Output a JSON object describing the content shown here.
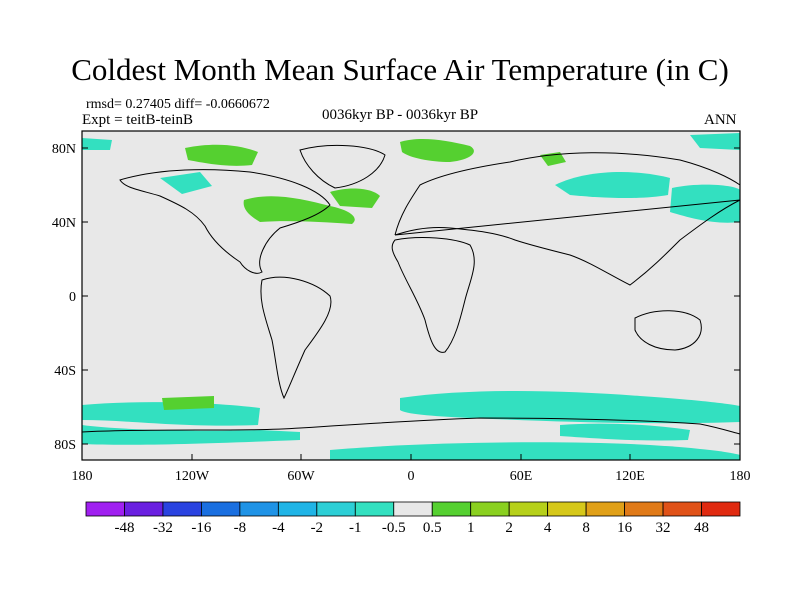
{
  "title": "Coldest Month Mean Surface Air Temperature (in C)",
  "stats_line": "rmsd= 0.27405 diff= -0.0660672",
  "expt_line": "Expt = teitB-teinB",
  "center_label": "0036kyr BP - 0036kyr BP",
  "right_label": "ANN",
  "lat_labels": [
    "80N",
    "40N",
    "0",
    "40S",
    "80S"
  ],
  "lon_labels": [
    "180",
    "120W",
    "60W",
    "0",
    "60E",
    "120E",
    "180"
  ],
  "colorbar": {
    "labels": [
      "-48",
      "-32",
      "-16",
      "-8",
      "-4",
      "-2",
      "-1",
      "-0.5",
      "0.5",
      "1",
      "2",
      "4",
      "8",
      "16",
      "32",
      "48"
    ],
    "colors": [
      "#a020f0",
      "#6a1fe0",
      "#2a43e0",
      "#1a6fe0",
      "#1f93e6",
      "#1fb4e6",
      "#2ccfd6",
      "#33e0c0",
      "#e8e8e8",
      "#55d030",
      "#8ad020",
      "#b6d01a",
      "#d6c81a",
      "#e0a018",
      "#e07a18",
      "#e05218",
      "#e02a10"
    ]
  },
  "colors": {
    "ocean_background": "#e8e8e8",
    "coastline": "#000000",
    "cool_anomaly": "#33e0c0",
    "warm_anomaly": "#55d030"
  }
}
